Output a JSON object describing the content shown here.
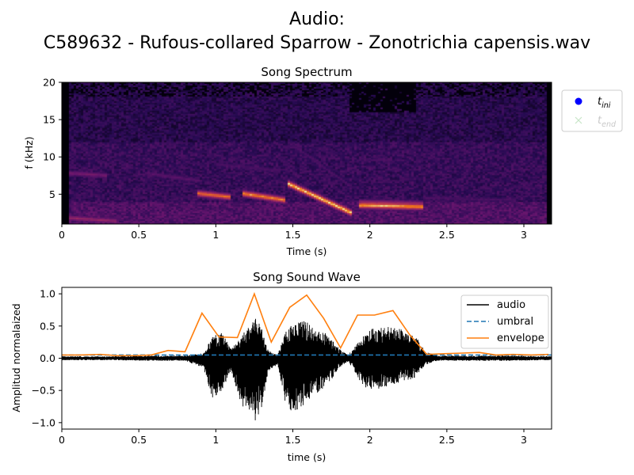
{
  "figure": {
    "title_line1": "Audio:",
    "title_line2": "C589632 - Rufous-collared Sparrow - Zonotrichia capensis.wav"
  },
  "chart_data": [
    {
      "type": "heatmap",
      "title": "Song Spectrum",
      "xlabel": "Time (s)",
      "ylabel": "f (kHz)",
      "xlim": [
        0,
        3.18
      ],
      "ylim": [
        1,
        20
      ],
      "xticks": [
        0,
        0.5,
        1,
        1.5,
        2,
        2.5,
        3
      ],
      "xtick_labels": [
        "0",
        "0.5",
        "1",
        "1.5",
        "2",
        "2.5",
        "3"
      ],
      "yticks": [
        5,
        10,
        15,
        20
      ],
      "ytick_labels": [
        "5",
        "10",
        "15",
        "20"
      ],
      "colormap": "magma",
      "legend": {
        "placement": "outside-right",
        "entries": [
          {
            "base": "t",
            "sub": "ini",
            "marker": "circle",
            "color": "#0000ff"
          },
          {
            "base": "t",
            "sub": "end",
            "marker": "x",
            "color": "#c8e6c8",
            "faded": true
          }
        ]
      },
      "features": [
        {
          "t": [
            0.88,
            1.1
          ],
          "f": [
            5.1,
            4.6
          ],
          "i": 0.85
        },
        {
          "t": [
            1.17,
            1.45
          ],
          "f": [
            5.1,
            4.2
          ],
          "i": 0.9
        },
        {
          "t": [
            1.47,
            1.88
          ],
          "f": [
            6.4,
            2.5
          ],
          "i": 1.0
        },
        {
          "t": [
            1.93,
            2.35
          ],
          "f": [
            3.5,
            3.3
          ],
          "i": 0.95
        },
        {
          "t": [
            1.93,
            2.35
          ],
          "f": [
            3.9,
            3.7
          ],
          "i": 0.6
        },
        {
          "t": [
            0.05,
            0.35
          ],
          "f": [
            1.8,
            1.4
          ],
          "i": 0.55
        },
        {
          "t": [
            0.55,
            0.9
          ],
          "f": [
            7.8,
            6.8
          ],
          "i": 0.35
        },
        {
          "t": [
            0.05,
            0.3
          ],
          "f": [
            7.8,
            7.5
          ],
          "i": 0.45
        },
        {
          "t": [
            1.0,
            1.4
          ],
          "f": [
            9.0,
            8.2
          ],
          "i": 0.3
        },
        {
          "t": [
            1.47,
            1.88
          ],
          "f": [
            12.0,
            6.0
          ],
          "i": 0.3
        },
        {
          "t": [
            2.35,
            2.95
          ],
          "f": [
            4.5,
            4.2
          ],
          "i": 0.3
        }
      ]
    },
    {
      "type": "line",
      "title": "Song Sound Wave",
      "xlabel": "time (s)",
      "ylabel": "Amplitud normalaized",
      "xlim": [
        0,
        3.18
      ],
      "ylim": [
        -1.1,
        1.1
      ],
      "xticks": [
        0,
        0.5,
        1,
        1.5,
        2,
        2.5,
        3
      ],
      "xtick_labels": [
        "0",
        "0.5",
        "1",
        "1.5",
        "2",
        "2.5",
        "3"
      ],
      "yticks": [
        1.0,
        0.5,
        0.0,
        -0.5,
        -1.0
      ],
      "ytick_labels": [
        "1.0",
        "0.5",
        "0.0",
        "−0.5",
        "−1.0"
      ],
      "legend": {
        "placement": "top-right",
        "entries": [
          {
            "name": "audio",
            "color": "#000000",
            "style": "solid"
          },
          {
            "name": "umbral",
            "color": "#1f77b4",
            "style": "dashed"
          },
          {
            "name": "envelope",
            "color": "#ff7f0e",
            "style": "solid"
          }
        ]
      },
      "umbral": 0.05,
      "envelope": {
        "x": [
          0.0,
          0.12,
          0.25,
          0.36,
          0.47,
          0.58,
          0.69,
          0.8,
          0.91,
          1.02,
          1.14,
          1.25,
          1.36,
          1.48,
          1.59,
          1.7,
          1.81,
          1.92,
          2.03,
          2.15,
          2.26,
          2.37,
          2.48,
          2.6,
          2.71,
          2.82,
          2.93,
          3.05,
          3.16
        ],
        "y": [
          0.05,
          0.05,
          0.06,
          0.04,
          0.04,
          0.05,
          0.12,
          0.1,
          0.7,
          0.33,
          0.32,
          1.0,
          0.25,
          0.79,
          0.98,
          0.62,
          0.16,
          0.67,
          0.67,
          0.74,
          0.36,
          0.06,
          0.07,
          0.08,
          0.09,
          0.05,
          0.06,
          0.05,
          0.06
        ]
      },
      "audio_envelope": {
        "x": [
          0.0,
          0.3,
          0.6,
          0.8,
          0.92,
          0.98,
          1.04,
          1.1,
          1.16,
          1.22,
          1.26,
          1.3,
          1.34,
          1.4,
          1.46,
          1.5,
          1.56,
          1.6,
          1.66,
          1.72,
          1.8,
          1.86,
          1.9,
          1.94,
          2.0,
          2.1,
          2.2,
          2.3,
          2.36,
          2.45,
          2.7,
          2.9,
          3.18
        ],
        "upper": [
          0.03,
          0.03,
          0.04,
          0.04,
          0.08,
          0.35,
          0.4,
          0.15,
          0.32,
          0.55,
          0.62,
          0.5,
          0.12,
          0.05,
          0.45,
          0.52,
          0.6,
          0.55,
          0.42,
          0.4,
          0.15,
          0.05,
          0.18,
          0.3,
          0.45,
          0.5,
          0.45,
          0.35,
          0.1,
          0.04,
          0.04,
          0.04,
          0.03
        ],
        "lower": [
          -0.03,
          -0.03,
          -0.04,
          -0.04,
          -0.15,
          -0.65,
          -0.5,
          -0.2,
          -0.7,
          -0.9,
          -1.0,
          -0.75,
          -0.2,
          -0.1,
          -0.8,
          -0.82,
          -0.78,
          -0.65,
          -0.55,
          -0.45,
          -0.15,
          -0.05,
          -0.2,
          -0.4,
          -0.5,
          -0.45,
          -0.38,
          -0.3,
          -0.1,
          -0.04,
          -0.04,
          -0.04,
          -0.03
        ]
      }
    }
  ]
}
